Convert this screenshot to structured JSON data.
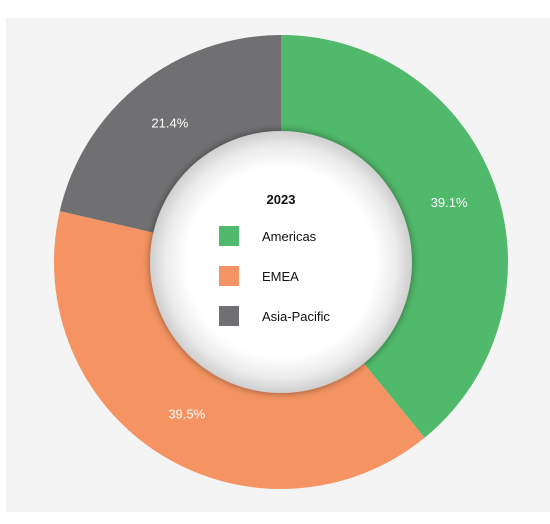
{
  "chart_data": {
    "type": "pie",
    "variant": "donut",
    "title": "2023",
    "categories": [
      "Americas",
      "EMEA",
      "Asia-Pacific"
    ],
    "values": [
      39.1,
      39.5,
      21.4
    ],
    "labels": [
      "39.1%",
      "39.5%",
      "21.4%"
    ],
    "colors": [
      "#51b96b",
      "#f59462",
      "#707072"
    ],
    "legend_position": "center",
    "start": "top",
    "direction": "clockwise"
  }
}
